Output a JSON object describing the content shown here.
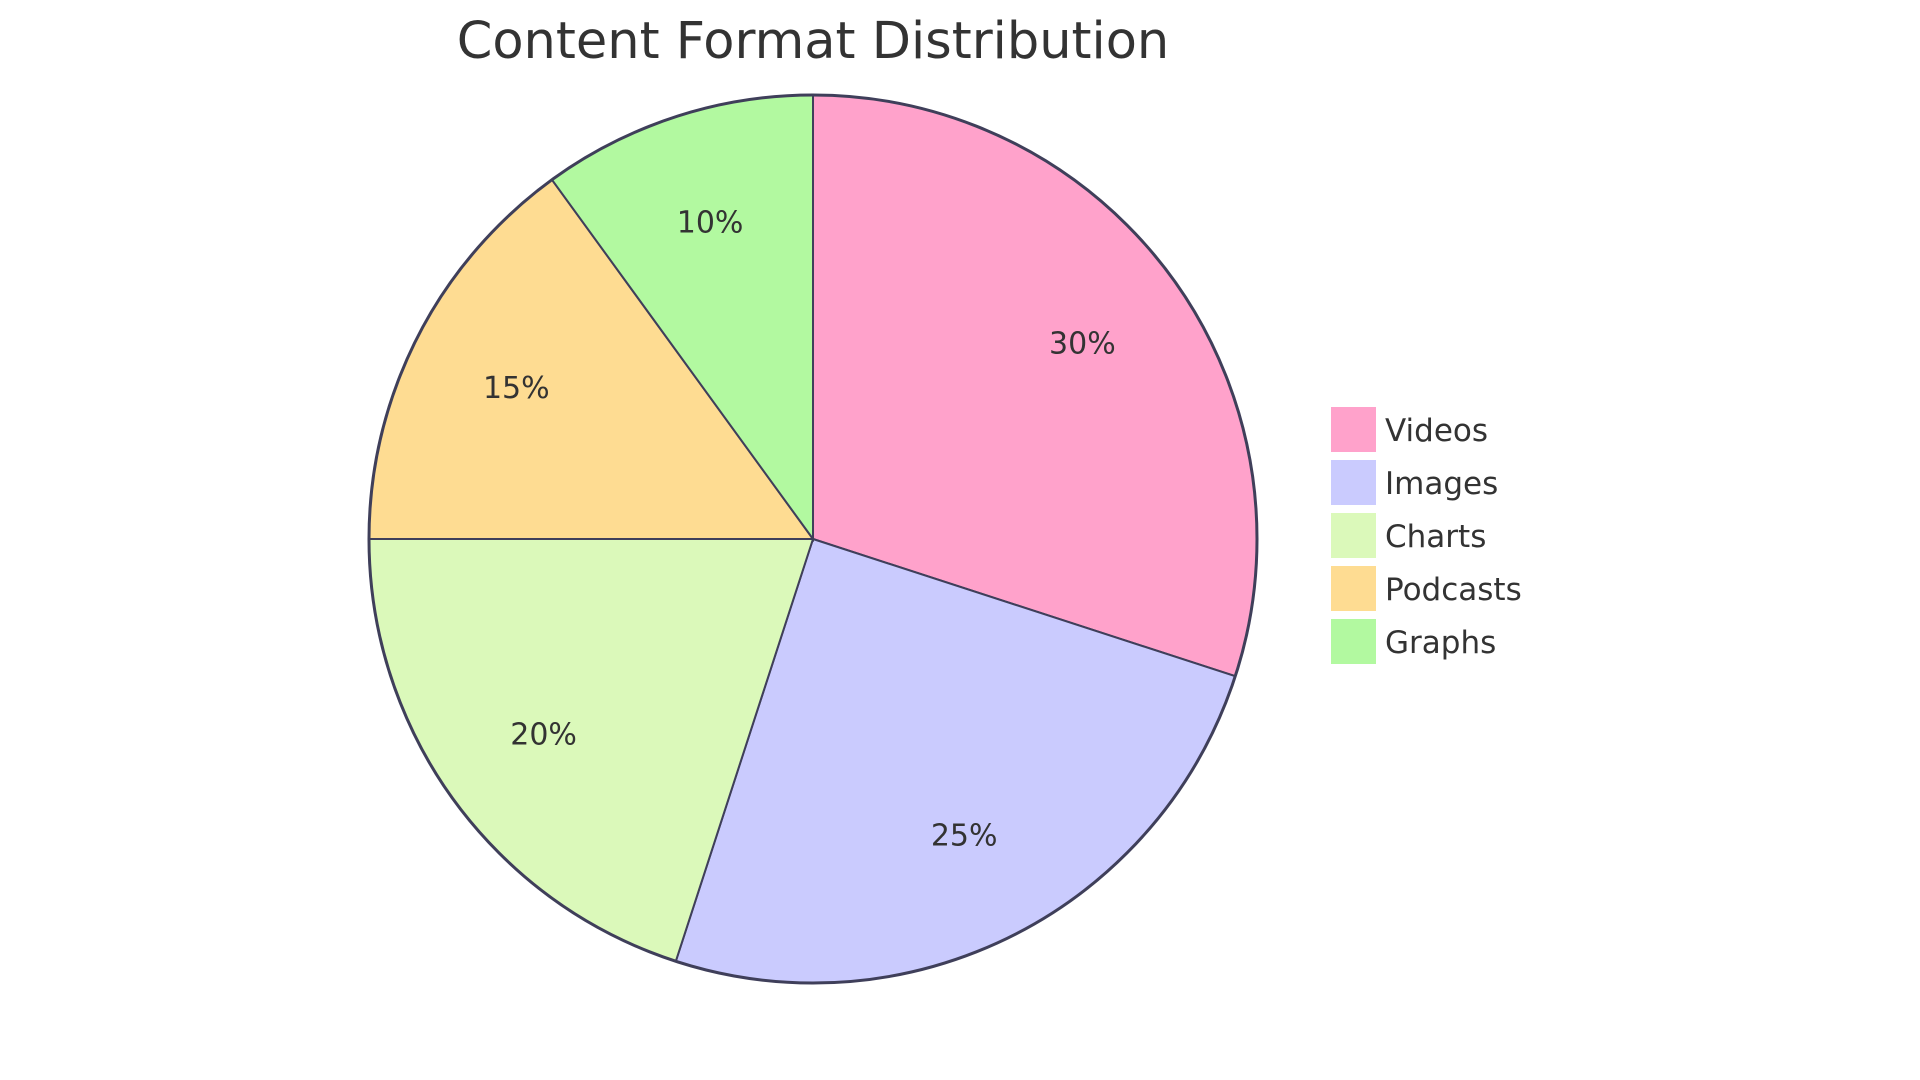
{
  "chart_data": {
    "type": "pie",
    "title": "Content Format Distribution",
    "categories": [
      "Videos",
      "Images",
      "Charts",
      "Podcasts",
      "Graphs"
    ],
    "values": [
      30,
      25,
      20,
      15,
      10
    ],
    "data_labels": [
      "30%",
      "25%",
      "20%",
      "15%",
      "10%"
    ],
    "colors": [
      "#FFA2CB",
      "#CACBFE",
      "#DBF9BA",
      "#FEDC92",
      "#B2F9A0"
    ],
    "stroke_color": "#3F3F5A",
    "legend_position": "right"
  }
}
